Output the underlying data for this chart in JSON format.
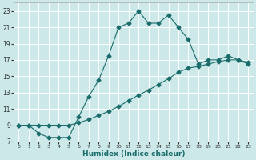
{
  "xlabel": "Humidex (Indice chaleur)",
  "bg_color": "#cce8e8",
  "grid_color": "#ffffff",
  "line_color": "#1a6b6b",
  "xlim": [
    -0.5,
    23.5
  ],
  "ylim": [
    7,
    24
  ],
  "xticks": [
    0,
    1,
    2,
    3,
    4,
    5,
    6,
    7,
    8,
    9,
    10,
    11,
    12,
    13,
    14,
    15,
    16,
    17,
    18,
    19,
    20,
    21,
    22,
    23
  ],
  "yticks": [
    7,
    9,
    11,
    13,
    15,
    17,
    19,
    21,
    23
  ],
  "line1_x": [
    0,
    1,
    2,
    3,
    4,
    5,
    6,
    7,
    8,
    9,
    10,
    11,
    12,
    13,
    14,
    15,
    16,
    17,
    18,
    19,
    20,
    21,
    22,
    23
  ],
  "line1_y": [
    9,
    9,
    8,
    7.5,
    7.5,
    7.5,
    10,
    12.5,
    14.5,
    17.5,
    21,
    21.5,
    23,
    21.5,
    21.5,
    22.5,
    21,
    19.5,
    16.5,
    17,
    17,
    17.5,
    17,
    16.5
  ],
  "line2_x": [
    0,
    1,
    2,
    3,
    4,
    5,
    6,
    7,
    8,
    9,
    10,
    11,
    12,
    13,
    14,
    15,
    16,
    17,
    18,
    19,
    20,
    21,
    22,
    23
  ],
  "line2_y": [
    9,
    9,
    9,
    9,
    9,
    9,
    9.3,
    9.7,
    10.2,
    10.7,
    11.3,
    12,
    12.7,
    13.3,
    14,
    14.7,
    15.5,
    16,
    16.2,
    16.5,
    16.8,
    17,
    17,
    16.7
  ],
  "markersize": 2.5,
  "linewidth": 0.8,
  "xlabel_fontsize": 6.5,
  "tick_fontsize": 5.2
}
